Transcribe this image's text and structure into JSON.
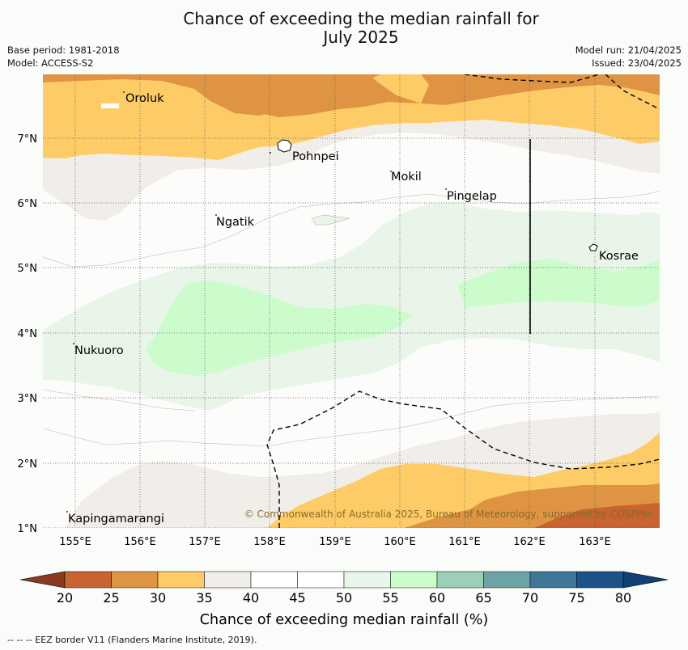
{
  "title_line1": "Chance of exceeding the median rainfall for",
  "title_line2": "July 2025",
  "base_period": "Base period: 1981-2018",
  "model": "Model: ACCESS-S2",
  "model_run": "Model run: 21/04/2025",
  "issued": "Issued: 23/04/2025",
  "axes": {
    "lon_labels": [
      "155°E",
      "156°E",
      "157°E",
      "158°E",
      "159°E",
      "160°E",
      "161°E",
      "162°E",
      "163°E"
    ],
    "lat_labels": [
      "7°N",
      "6°N",
      "5°N",
      "4°N",
      "3°N",
      "2°N",
      "1°N"
    ]
  },
  "places": [
    "Oroluk",
    "Pohnpei",
    "Mokil",
    "Pingelap",
    "Ngatik",
    "Kosrae",
    "Nukuoro",
    "Kapingamarangi"
  ],
  "copyright": "© Commonwealth of Australia 2025, Bureau of Meteorology, supported by COSPPac",
  "colorbar": {
    "ticks": [
      "20",
      "25",
      "30",
      "35",
      "40",
      "45",
      "50",
      "55",
      "60",
      "65",
      "70",
      "75",
      "80"
    ],
    "title": "Chance of exceeding median rainfall (%)",
    "colors": [
      "#b34d28",
      "#c9632f",
      "#df9444",
      "#fecc66",
      "#f1ede8",
      "#ffffff",
      "#ffffff",
      "#e9f5e9",
      "#ccfccc",
      "#9ccfb5",
      "#6ea4a6",
      "#3e7797",
      "#1b5389"
    ]
  },
  "footnote": "--  --  -- EEZ border V11 (Flanders Marine Institute, 2019)."
}
